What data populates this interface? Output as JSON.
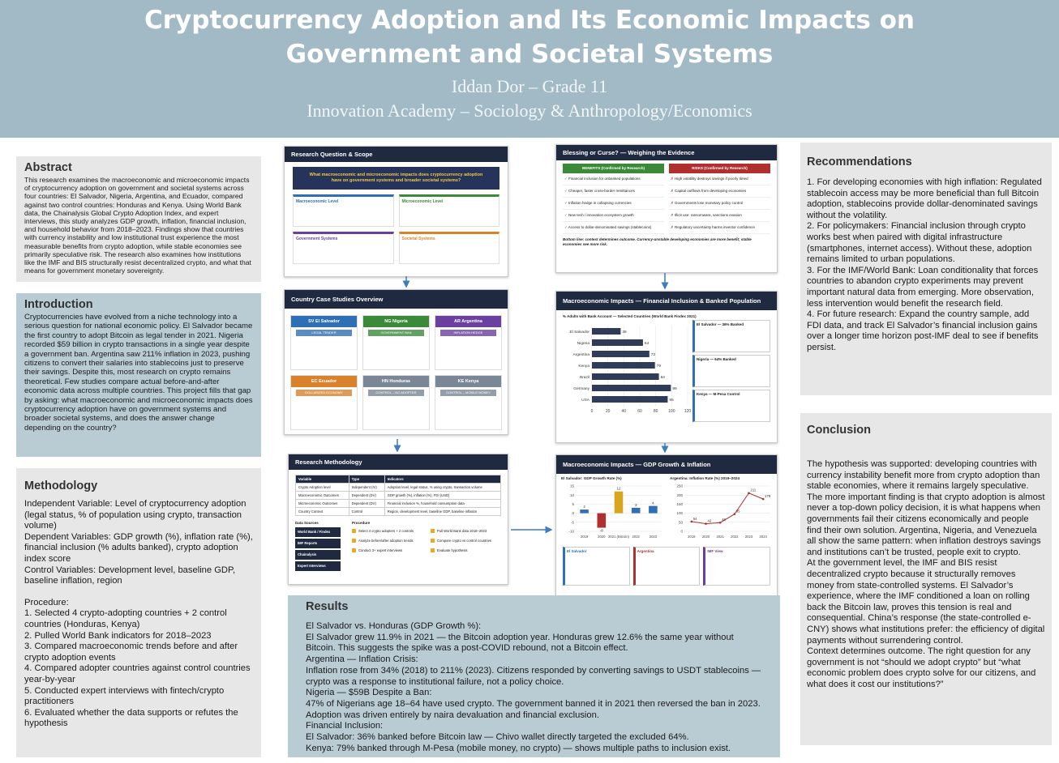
{
  "header": {
    "title": "Cryptocurrency Adoption and Its Economic Impacts on Government and Societal Systems",
    "author": "Iddan Dor – Grade 11",
    "affiliation": "Innovation Academy – Sociology & Anthropology/Economics"
  },
  "abstract": {
    "heading": "Abstract",
    "text": "This research examines the macroeconomic and microeconomic impacts of cryptocurrency adoption on government and societal systems across four countries: El Salvador, Nigeria, Argentina, and Ecuador, compared against two control countries: Honduras and Kenya. Using World Bank data, the Chainalysis Global Crypto Adoption Index, and expert interviews, this study analyzes GDP growth, inflation, financial inclusion, and household behavior from 2018–2023. Findings show that countries with currency instability and low institutional trust experience the most measurable benefits from crypto adoption, while stable economies see primarily speculative risk. The research also examines how institutions like the IMF and BIS structurally resist decentralized crypto, and what that means for government monetary sovereignty."
  },
  "introduction": {
    "heading": "Introduction",
    "text": "Cryptocurrencies have evolved from a niche technology into a serious question for national economic policy. El Salvador became the first country to adopt Bitcoin as legal tender in 2021. Nigeria recorded $59 billion in crypto transactions in a single year despite a government ban. Argentina saw 211% inflation in 2023, pushing citizens to convert their salaries into stablecoins just to preserve their savings. Despite this, most research on crypto remains theoretical. Few studies compare actual before-and-after economic data across multiple countries. This project fills that gap by asking: what macroeconomic and microeconomic impacts does cryptocurrency adoption have on government systems and broader societal systems, and does the answer change depending on the country?"
  },
  "methodology": {
    "heading": "Methodology",
    "variables": [
      "Independent Variable: Level of cryptocurrency adoption (legal status, % of population using crypto, transaction volume)",
      "Dependent Variables: GDP growth (%), inflation rate (%), financial inclusion (% adults banked), crypto adoption index score",
      "Control Variables: Development level, baseline GDP, baseline inflation, region"
    ],
    "procedure_heading": "Procedure:",
    "procedure": [
      "1. Selected 4 crypto-adopting countries + 2 control countries (Honduras, Kenya)",
      "2. Pulled World Bank indicators for 2018–2023",
      "3. Compared macroeconomic trends before and after crypto adoption events",
      "4. Compared adopter countries against control countries year-by-year",
      "5. Conducted expert interviews with fintech/crypto practitioners",
      "6. Evaluated whether the data supports or refutes the hypothesis"
    ]
  },
  "figures": {
    "research_question": {
      "title": "Research Question & Scope",
      "question": "What macroeconomic and microeconomic impacts does cryptocurrency adoption have on government systems and broader societal systems?",
      "boxes": [
        {
          "title": "Macroeconomic Level",
          "color": "#2e6fb5"
        },
        {
          "title": "Microeconomic Level",
          "color": "#3a8a3a"
        },
        {
          "title": "Government Systems",
          "color": "#6b3fa0"
        },
        {
          "title": "Societal Systems",
          "color": "#d9822b"
        }
      ]
    },
    "country_cases": {
      "title": "Country Case Studies Overview",
      "countries": [
        {
          "name": "SV El Salvador",
          "tag": "LEGAL TENDER",
          "color": "#2e6fb5"
        },
        {
          "name": "NG Nigeria",
          "tag": "GOVERNMENT BAN",
          "color": "#3a8a3a"
        },
        {
          "name": "AR Argentina",
          "tag": "INFLATION HEDGE",
          "color": "#6b3fa0"
        },
        {
          "name": "EC Ecuador",
          "tag": "DOLLARIZED ECONOMY",
          "color": "#d9822b"
        },
        {
          "name": "HN Honduras",
          "tag": "CONTROL – NO ADOPTER",
          "color": "#7a8796"
        },
        {
          "name": "KE Kenya",
          "tag": "CONTROL – MOBILE MONEY",
          "color": "#7a8796"
        }
      ]
    },
    "research_methodology": {
      "title": "Research Methodology",
      "table_header": [
        "Variable",
        "Type",
        "Indicators"
      ],
      "table_rows": [
        [
          "Crypto Adoption level",
          "Independent (IV)",
          "Adoption level, legal status, % using crypto, transaction volume"
        ],
        [
          "Macroeconomic Outcomes",
          "Dependent (DV)",
          "GDP growth (%), inflation (%), FDI (USD)"
        ],
        [
          "Microeconomic Outcomes",
          "Dependent (DV)",
          "Financial inclusion %, household consumption data"
        ],
        [
          "Country Context",
          "Control",
          "Region, development level, baseline GDP, baseline inflation"
        ]
      ],
      "sources_heading": "Data Sources",
      "sources": [
        "World Bank / Findex",
        "IMF Reports",
        "Chainalysis",
        "Expert Interviews"
      ],
      "procedure_heading": "Procedure",
      "procedure": [
        "Select 4 crypto adopters + 2 controls",
        "Pull World Bank data 2018–2023",
        "Analyze before/after adoption trends",
        "Compare crypto vs control countries",
        "Conduct 3+ expert interviews",
        "Evaluate hypothesis"
      ]
    },
    "evidence": {
      "title": "Blessing or Curse? — Weighing the Evidence",
      "benefits_heading": "BENEFITS (Confirmed by Research)",
      "risks_heading": "RISKS (Confirmed by Research)",
      "benefits": [
        "Financial inclusion for unbanked populations",
        "Cheaper, faster cross-border remittances",
        "Inflation hedge in collapsing currencies",
        "New tech / innovation ecosystem growth",
        "Access to dollar-denominated savings (stablecoins)"
      ],
      "risks": [
        "High volatility destroys savings if poorly timed",
        "Capital outflows from developing economies",
        "Governments lose monetary policy control",
        "Illicit use: ransomware, sanctions evasion",
        "Regulatory uncertainty harms investor confidence"
      ],
      "bottom_line": "Bottom line: context determines outcome. Currency-unstable developing economies are more benefit; stable economies see more risk."
    },
    "financial_inclusion": {
      "type": "bar",
      "title": "Macroeconomic Impacts — Financial Inclusion & Banked Population",
      "subtitle": "% Adults with Bank Account — Selected Countries (World Bank Findex 2021)",
      "categories": [
        "El Salvador",
        "Nigeria",
        "Argentina",
        "Kenya",
        "Brazil",
        "Germany",
        "USA"
      ],
      "values": [
        36,
        64,
        72,
        79,
        84,
        99,
        95
      ],
      "color": "#2f3b59",
      "xlim": [
        0,
        120
      ],
      "xticks": [
        0,
        20,
        40,
        60,
        80,
        100,
        120
      ],
      "notes": [
        "El Salvador — 36% Banked",
        "Nigeria — 64% Banked",
        "Kenya — M-Pesa Control"
      ]
    },
    "gdp_inflation": {
      "title": "Macroeconomic Impacts — GDP Growth & Inflation",
      "gdp": {
        "type": "bar",
        "title": "El Salvador: GDP Growth Rate (%)",
        "categories": [
          "2019",
          "2020",
          "2021 (Bitcoin)",
          "2022",
          "2023"
        ],
        "values": [
          2,
          -8,
          12,
          3,
          4
        ],
        "colors": [
          "#2e6fb5",
          "#b03030",
          "#d9a520",
          "#2e6fb5",
          "#2e6fb5"
        ],
        "ylim": [
          -10,
          15
        ],
        "yticks": [
          -10,
          -5,
          0,
          5,
          10,
          15
        ]
      },
      "inflation": {
        "type": "line",
        "title": "Argentina: Inflation Rate (%) 2019–2024",
        "categories": [
          "2019",
          "2020",
          "2021",
          "2022",
          "2023",
          "2024"
        ],
        "values": [
          54,
          42,
          48,
          95,
          211,
          178
        ],
        "color": "#b03030",
        "ylim": [
          0,
          250
        ],
        "yticks": [
          0,
          50,
          100,
          150,
          200,
          250
        ]
      },
      "notes": [
        {
          "title": "El Salvador",
          "color": "#2e6fb5"
        },
        {
          "title": "Argentina",
          "color": "#b03030"
        },
        {
          "title": "IMF View",
          "color": "#6b3fa0"
        }
      ]
    }
  },
  "results": {
    "heading": "Results",
    "lines": [
      "El Salvador vs. Honduras (GDP Growth %):",
      "El Salvador grew 11.9% in 2021 — the Bitcoin adoption year. Honduras grew 12.6% the same year without Bitcoin. This suggests the spike was a post-COVID rebound, not a Bitcoin effect.",
      "Argentina — Inflation Crisis:",
      "Inflation rose from 34% (2018) to 211% (2023). Citizens responded by converting savings to USDT stablecoins — crypto was a response to institutional failure, not a policy choice.",
      "Nigeria — $59B Despite a Ban:",
      "47% of Nigerians age 18–64 have used crypto. The government banned it in 2021 then reversed the ban in 2023. Adoption was driven entirely by naira devaluation and financial exclusion.",
      "Financial Inclusion:",
      "El Salvador: 36% banked before Bitcoin law — Chivo wallet directly targeted the excluded 64%.",
      "Kenya: 79% banked through M-Pesa (mobile money, no crypto) — shows multiple paths to inclusion exist."
    ]
  },
  "recommendations": {
    "heading": "Recommendations",
    "lines": [
      "1. For developing economies with high inflation: Regulated stablecoin access may be more beneficial than full Bitcoin adoption, stablecoins provide dollar-denominated savings without the volatility.",
      "2. For policymakers: Financial inclusion through crypto works best when paired with digital infrastructure (smartphones, internet access). Without these, adoption remains limited to urban populations.",
      "3. For the IMF/World Bank: Loan conditionality that forces countries to abandon crypto experiments may prevent important natural data from emerging. More observation, less intervention would benefit the research field.",
      "4. For future research: Expand the country sample, add FDI data, and track El Salvador’s financial inclusion gains over a longer time horizon post-IMF deal to see if benefits persist."
    ]
  },
  "conclusion": {
    "heading": "Conclusion",
    "lines": [
      "The hypothesis was supported: developing countries with currency instability benefit more from crypto adoption than stable economies, where it remains largely speculative.",
      "The more important finding is that crypto adoption is almost never a top-down policy decision, it is what happens when governments fail their citizens economically and people find their own solution. Argentina, Nigeria, and Venezuela all show the same pattern: when inflation destroys savings and institutions can’t be trusted, people exit to crypto.",
      "At the government level, the IMF and BIS resist decentralized crypto because it structurally removes money from state-controlled systems. El Salvador’s experience, where the IMF conditioned a loan on rolling back the Bitcoin law, proves this tension is real and consequential. China’s response (the state-controlled e-CNY) shows what institutions prefer: the efficiency of digital payments without surrendering control.",
      "Context determines outcome. The right question for any government is not “should we adopt crypto” but “what economic problem does crypto solve for our citizens, and what does it cost our institutions?”"
    ]
  }
}
